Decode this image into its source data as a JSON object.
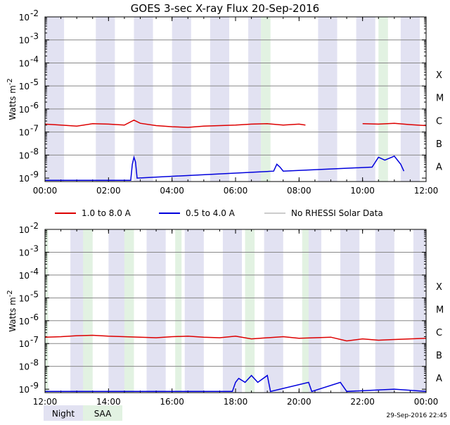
{
  "title": "GOES 3-sec X-ray Flux   20-Sep-2016",
  "ylabel": "Watts m",
  "ylabel_sup": "-2",
  "footer_timestamp": "29-Sep-2016 22:45",
  "legend": {
    "series": [
      {
        "label": "1.0 to 8.0 A",
        "color": "#dd0000"
      },
      {
        "label": "0.5 to 4.0 A",
        "color": "#0000dd"
      },
      {
        "label": "No RHESSI Solar Data",
        "color": "#999999"
      }
    ],
    "bands": [
      {
        "label": "Night",
        "color": "#e2e2f2"
      },
      {
        "label": "SAA",
        "color": "#e2f2e2"
      }
    ]
  },
  "flare_classes": [
    "A",
    "B",
    "C",
    "M",
    "X"
  ],
  "y_ticks": [
    "10",
    "10",
    "10",
    "10",
    "10",
    "10",
    "10",
    "10"
  ],
  "y_tick_exponents": [
    "-9",
    "-8",
    "-7",
    "-6",
    "-5",
    "-4",
    "-3",
    "-2"
  ],
  "chart_data": [
    {
      "type": "line",
      "title": "GOES 3-sec X-ray Flux   20-Sep-2016",
      "ylabel": "Watts m-2",
      "yscale": "log",
      "ylim": [
        7e-10,
        0.01
      ],
      "xlim": [
        0,
        12
      ],
      "x_ticks": [
        "00:00",
        "02:00",
        "04:00",
        "06:00",
        "08:00",
        "10:00",
        "12:00"
      ],
      "night_hours": [
        [
          0.0,
          0.6
        ],
        [
          1.6,
          2.2
        ],
        [
          2.8,
          3.4
        ],
        [
          4.0,
          4.6
        ],
        [
          5.2,
          5.8
        ],
        [
          6.4,
          6.8
        ],
        [
          8.6,
          9.2
        ],
        [
          9.8,
          10.4
        ],
        [
          11.2,
          11.8
        ]
      ],
      "saa_hours": [
        [
          6.8,
          7.1
        ],
        [
          10.5,
          10.8
        ]
      ],
      "series": [
        {
          "name": "1.0 to 8.0 A",
          "color": "#dd0000",
          "x": [
            0,
            0.5,
            1.0,
            1.5,
            2.0,
            2.5,
            2.8,
            3.0,
            3.5,
            4.0,
            4.5,
            5.0,
            5.5,
            6.0,
            6.5,
            7.0,
            7.5,
            8.0,
            8.2
          ],
          "y": [
            2.2e-07,
            2e-07,
            1.8e-07,
            2.3e-07,
            2.2e-07,
            2e-07,
            3.3e-07,
            2.4e-07,
            1.9e-07,
            1.7e-07,
            1.6e-07,
            1.8e-07,
            1.9e-07,
            2e-07,
            2.2e-07,
            2.3e-07,
            2e-07,
            2.2e-07,
            2e-07
          ]
        },
        {
          "name": "1.0 to 8.0 A (after gap)",
          "color": "#dd0000",
          "x": [
            10.0,
            10.5,
            11.0,
            11.5,
            12.0
          ],
          "y": [
            2.3e-07,
            2.2e-07,
            2.4e-07,
            2.1e-07,
            1.9e-07
          ]
        },
        {
          "name": "0.5 to 4.0 A",
          "color": "#0000dd",
          "x": [
            0,
            2.7,
            2.75,
            2.8,
            2.85,
            2.9,
            7.2,
            7.3,
            7.4,
            7.5,
            10.3,
            10.5,
            10.7,
            11.0,
            11.2,
            11.3
          ],
          "y": [
            8e-10,
            8e-10,
            4e-09,
            8e-09,
            5e-09,
            1e-09,
            2e-09,
            4e-09,
            3e-09,
            2e-09,
            3e-09,
            8e-09,
            6e-09,
            9e-09,
            4e-09,
            2e-09
          ]
        }
      ]
    },
    {
      "type": "line",
      "ylabel": "Watts m-2",
      "yscale": "log",
      "ylim": [
        7e-10,
        0.01
      ],
      "xlim": [
        12,
        24
      ],
      "x_ticks": [
        "12:00",
        "14:00",
        "16:00",
        "18:00",
        "20:00",
        "22:00",
        "00:00"
      ],
      "night_hours": [
        [
          12.8,
          13.4
        ],
        [
          14.0,
          14.6
        ],
        [
          15.2,
          15.8
        ],
        [
          16.4,
          17.0
        ],
        [
          17.6,
          18.2
        ],
        [
          18.9,
          19.5
        ],
        [
          20.1,
          20.7
        ],
        [
          21.3,
          21.9
        ],
        [
          22.4,
          23.0
        ],
        [
          23.6,
          24.0
        ]
      ],
      "saa_hours": [
        [
          12.0,
          12.1
        ],
        [
          13.2,
          13.5
        ],
        [
          14.5,
          14.8
        ],
        [
          16.1,
          16.3
        ],
        [
          18.3,
          18.6
        ],
        [
          20.1,
          20.3
        ]
      ],
      "series": [
        {
          "name": "1.0 to 8.0 A",
          "color": "#dd0000",
          "x": [
            12,
            12.5,
            13.0,
            13.5,
            14.0,
            14.5,
            15.0,
            15.5,
            16.0,
            16.5,
            17.0,
            17.5,
            18.0,
            18.5,
            19.0,
            19.5,
            20.0,
            20.5,
            21.0,
            21.5,
            22.0,
            22.5,
            23.0,
            23.5,
            24.0
          ],
          "y": [
            1.9e-07,
            2e-07,
            2.2e-07,
            2.3e-07,
            2.1e-07,
            2e-07,
            1.9e-07,
            1.8e-07,
            2e-07,
            2.1e-07,
            1.9e-07,
            1.8e-07,
            2.1e-07,
            1.6e-07,
            1.8e-07,
            2e-07,
            1.7e-07,
            1.8e-07,
            1.9e-07,
            1.3e-07,
            1.6e-07,
            1.4e-07,
            1.5e-07,
            1.6e-07,
            1.7e-07
          ]
        },
        {
          "name": "0.5 to 4.0 A",
          "color": "#0000dd",
          "x": [
            12,
            17.9,
            18.0,
            18.1,
            18.3,
            18.5,
            18.7,
            19.0,
            19.1,
            20.3,
            20.4,
            21.3,
            21.5,
            23.0,
            24.0
          ],
          "y": [
            8e-10,
            8e-10,
            2e-09,
            3e-09,
            2e-09,
            4e-09,
            2e-09,
            4e-09,
            8e-10,
            2e-09,
            8e-10,
            2e-09,
            8e-10,
            1e-09,
            8e-10
          ]
        }
      ]
    }
  ]
}
